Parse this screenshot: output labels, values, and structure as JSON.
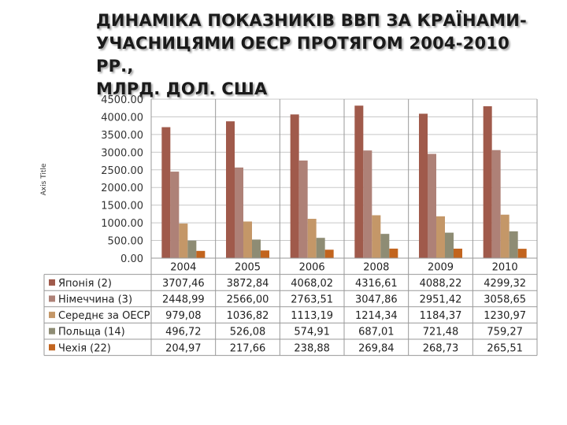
{
  "title_lines": [
    "ДИНАМІКА ПОКАЗНИКІВ ВВП ЗА КРАЇНАМИ-",
    "УЧАСНИЦЯМИ ОЕСР ПРОТЯГОМ 2004-2010 РР.,",
    "МЛРД. ДОЛ. США"
  ],
  "chart_data": {
    "type": "bar",
    "title": "ДИНАМІКА ПОКАЗНИКІВ ВВП ЗА КРАЇНАМИ-УЧАСНИЦЯМИ ОЕСР ПРОТЯГОМ 2004-2010 РР., МЛРД. ДОЛ. США",
    "ylabel": "Axis Title",
    "xlabel": "",
    "categories": [
      "2004",
      "2005",
      "2006",
      "2008",
      "2009",
      "2010"
    ],
    "ylim": [
      0,
      4500
    ],
    "yticks": [
      "0.00",
      "500.00",
      "1000.00",
      "1500.00",
      "2000.00",
      "2500.00",
      "3000.00",
      "3500.00",
      "4000.00",
      "4500.00"
    ],
    "grid": true,
    "legend": "data-table",
    "series": [
      {
        "name": "Японія (2)",
        "color": "#a05a4b",
        "values": [
          3707.46,
          3872.84,
          4068.02,
          4316.61,
          4088.22,
          4299.32
        ],
        "labels": [
          "3707,46",
          "3872,84",
          "4068,02",
          "4316,61",
          "4088,22",
          "4299,32"
        ]
      },
      {
        "name": "Німеччина (3)",
        "color": "#ae8177",
        "values": [
          2448.99,
          2566.0,
          2763.51,
          3047.86,
          2951.42,
          3058.65
        ],
        "labels": [
          "2448,99",
          "2566,00",
          "2763,51",
          "3047,86",
          "2951,42",
          "3058,65"
        ]
      },
      {
        "name": "Середнє за ОЕСР",
        "color": "#c49768",
        "values": [
          979.08,
          1036.82,
          1113.19,
          1214.34,
          1184.37,
          1230.97
        ],
        "labels": [
          "979,08",
          "1036,82",
          "1113,19",
          "1214,34",
          "1184,37",
          "1230,97"
        ]
      },
      {
        "name": "Польща (14)",
        "color": "#8e8c74",
        "values": [
          496.72,
          526.08,
          574.91,
          687.01,
          721.48,
          759.27
        ],
        "labels": [
          "496,72",
          "526,08",
          "574,91",
          "687,01",
          "721,48",
          "759,27"
        ]
      },
      {
        "name": "Чехія (22)",
        "color": "#c2641e",
        "values": [
          204.97,
          217.66,
          238.88,
          269.84,
          268.73,
          265.51
        ],
        "labels": [
          "204,97",
          "217,66",
          "238,88",
          "269,84",
          "268,73",
          "265,51"
        ]
      }
    ]
  }
}
